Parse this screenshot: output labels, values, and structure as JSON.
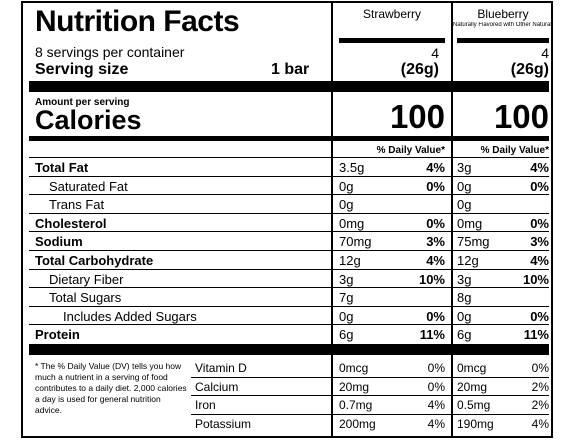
{
  "title": "Nutrition Facts",
  "servings_per_container": "8 servings per container",
  "serving_size_label": "Serving size",
  "serving_size_value": "1 bar",
  "amount_per_serving": "Amount per serving",
  "calories_label": "Calories",
  "dv_header": "% Daily Value*",
  "products": [
    {
      "name": "Strawberry",
      "subtitle": "",
      "servings": "4",
      "weight": "(26g)",
      "calories": "100",
      "nutrients": [
        {
          "amount": "3.5g",
          "dv": "4%"
        },
        {
          "amount": "0g",
          "dv": "0%"
        },
        {
          "amount": "0g",
          "dv": ""
        },
        {
          "amount": "0mg",
          "dv": "0%"
        },
        {
          "amount": "70mg",
          "dv": "3%"
        },
        {
          "amount": "12g",
          "dv": "4%"
        },
        {
          "amount": "3g",
          "dv": "10%"
        },
        {
          "amount": "7g",
          "dv": ""
        },
        {
          "amount": "0g",
          "dv": "0%"
        },
        {
          "amount": "6g",
          "dv": "11%"
        }
      ],
      "vitamins": [
        {
          "amount": "0mcg",
          "dv": "0%"
        },
        {
          "amount": "20mg",
          "dv": "0%"
        },
        {
          "amount": "0.7mg",
          "dv": "4%"
        },
        {
          "amount": "200mg",
          "dv": "4%"
        }
      ]
    },
    {
      "name": "Blueberry",
      "subtitle": "Naturally Flavored with Other Natural Flavors",
      "servings": "4",
      "weight": "(26g)",
      "calories": "100",
      "nutrients": [
        {
          "amount": "3g",
          "dv": "4%"
        },
        {
          "amount": "0g",
          "dv": "0%"
        },
        {
          "amount": "0g",
          "dv": ""
        },
        {
          "amount": "0mg",
          "dv": "0%"
        },
        {
          "amount": "75mg",
          "dv": "3%"
        },
        {
          "amount": "12g",
          "dv": "4%"
        },
        {
          "amount": "3g",
          "dv": "10%"
        },
        {
          "amount": "8g",
          "dv": ""
        },
        {
          "amount": "0g",
          "dv": "0%"
        },
        {
          "amount": "6g",
          "dv": "11%"
        }
      ],
      "vitamins": [
        {
          "amount": "0mcg",
          "dv": "0%"
        },
        {
          "amount": "20mg",
          "dv": "2%"
        },
        {
          "amount": "0.5mg",
          "dv": "2%"
        },
        {
          "amount": "190mg",
          "dv": "4%"
        }
      ]
    }
  ],
  "nutrients": [
    {
      "label": "Total Fat",
      "bold": true
    },
    {
      "label": "Saturated Fat",
      "bold": false
    },
    {
      "label": "Trans Fat",
      "bold": false
    },
    {
      "label": "Cholesterol",
      "bold": true
    },
    {
      "label": "Sodium",
      "bold": true
    },
    {
      "label": "Total Carbohydrate",
      "bold": true
    },
    {
      "label": "Dietary Fiber",
      "bold": false
    },
    {
      "label": "Total Sugars",
      "bold": false
    },
    {
      "label": "Includes Added Sugars",
      "bold": false
    },
    {
      "label": "Protein",
      "bold": true
    }
  ],
  "vitamin_labels": [
    "Vitamin D",
    "Calcium",
    "Iron",
    "Potassium"
  ],
  "footnote": "* The % Daily Value (DV) tells you how much a nutrient in a serving of food contributes to a daily diet. 2,000 calories a day is used for general nutrition advice."
}
